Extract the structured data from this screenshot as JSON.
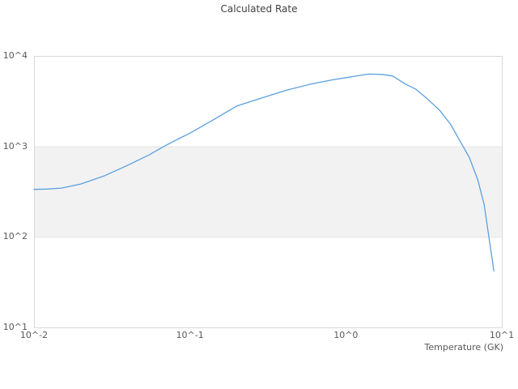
{
  "header": {
    "title": "Calculated Rate"
  },
  "chart_data": {
    "type": "line",
    "title": "Calculated Rate",
    "xlabel": "Temperature (GK)",
    "ylabel": "",
    "x_scale": "log",
    "y_scale": "log",
    "xlim": [
      0.01,
      10
    ],
    "ylim": [
      10,
      10000
    ],
    "grid": false,
    "legend": "none",
    "alternate_band": {
      "from": 100,
      "to": 1000,
      "fill": "#f2f2f2",
      "edge": "#e4e4e4"
    },
    "plot_border_color": "#d9d9d9",
    "x_ticks": [
      {
        "value": 0.01,
        "label": "10^-2"
      },
      {
        "value": 0.1,
        "label": "10^-1"
      },
      {
        "value": 1,
        "label": "10^0"
      },
      {
        "value": 10,
        "label": "10^1"
      }
    ],
    "y_ticks": [
      {
        "value": 10000,
        "label": "10^4"
      },
      {
        "value": 1000,
        "label": "10^3"
      },
      {
        "value": 100,
        "label": "10^2"
      },
      {
        "value": 10,
        "label": "10^1"
      }
    ],
    "series": [
      {
        "name": "Calculated Rate",
        "color": "#5b9fe0",
        "points": [
          [
            0.01,
            335
          ],
          [
            0.012,
            338
          ],
          [
            0.015,
            346
          ],
          [
            0.02,
            385
          ],
          [
            0.028,
            470
          ],
          [
            0.04,
            620
          ],
          [
            0.055,
            810
          ],
          [
            0.068,
            1000
          ],
          [
            0.085,
            1220
          ],
          [
            0.1,
            1400
          ],
          [
            0.14,
            1950
          ],
          [
            0.2,
            2800
          ],
          [
            0.3,
            3500
          ],
          [
            0.42,
            4200
          ],
          [
            0.6,
            4900
          ],
          [
            0.8,
            5400
          ],
          [
            1.0,
            5750
          ],
          [
            1.2,
            6050
          ],
          [
            1.4,
            6300
          ],
          [
            1.7,
            6250
          ],
          [
            2.0,
            6000
          ],
          [
            2.4,
            4900
          ],
          [
            2.8,
            4300
          ],
          [
            3.3,
            3400
          ],
          [
            4.0,
            2500
          ],
          [
            4.7,
            1750
          ],
          [
            5.5,
            1080
          ],
          [
            6.2,
            750
          ],
          [
            7.0,
            430
          ],
          [
            7.7,
            230
          ],
          [
            8.3,
            95
          ],
          [
            8.9,
            42
          ]
        ]
      }
    ]
  }
}
